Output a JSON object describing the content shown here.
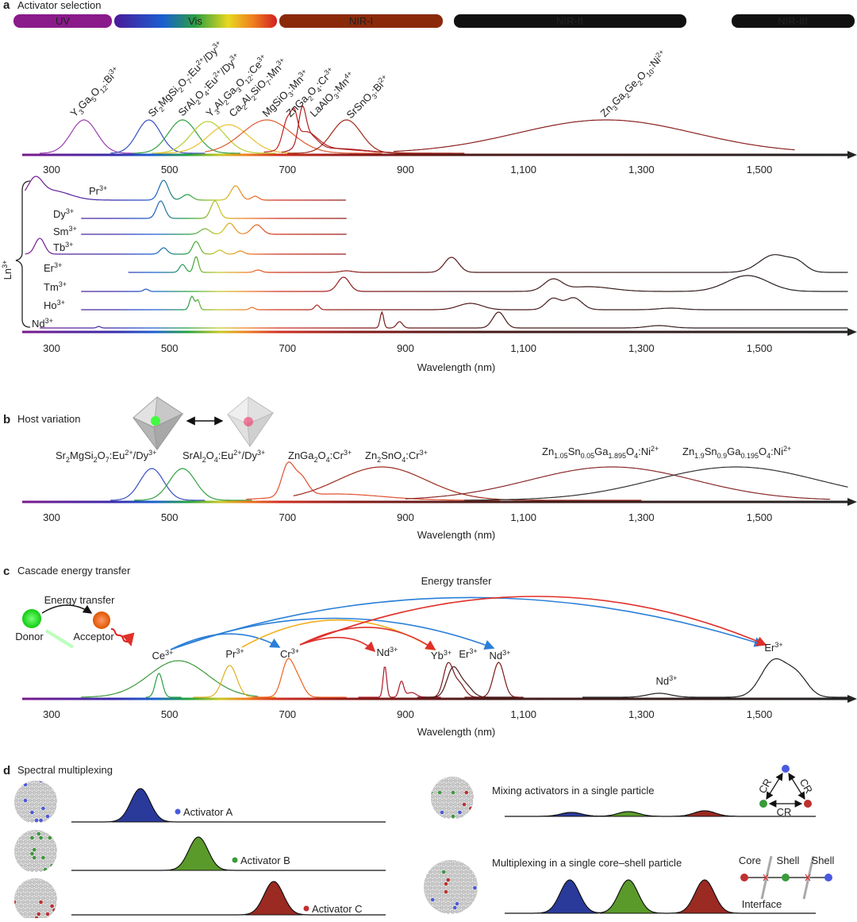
{
  "panel_a": {
    "letter": "a",
    "title": "Activator selection",
    "bands": [
      "UV",
      "Vis",
      "NIR-I",
      "NIR-II",
      "NIR-III"
    ],
    "phosphors": [
      "Y3Ga5O12:Bi3+",
      "Sr2MgSi2O7:Eu2+/Dy3+",
      "SrAl2O4:Eu2+/Dy3+",
      "Y3Al2Ga3O12:Ce3+",
      "Ca2Al2SiO7:Mn3+",
      "MgSiO3:Mn3+",
      "ZnGa2O4:Cr3+",
      "LaAlO3:Mn4+",
      "SrSnO3:Bi2+",
      "Zn3Ga2Ge2O10:Ni2+"
    ],
    "group_label": "Ln3+",
    "ions": [
      "Pr3+",
      "Dy3+",
      "Sm3+",
      "Tb3+",
      "Er3+",
      "Tm3+",
      "Ho3+",
      "Nd3+"
    ]
  },
  "axis": {
    "ticks": [
      300,
      500,
      700,
      900,
      {
        "value": 1100,
        "label": "1,100"
      },
      {
        "value": 1300,
        "label": "1,300"
      },
      {
        "value": 1500,
        "label": "1,500"
      }
    ],
    "label": "Wavelength (nm)"
  },
  "panel_b": {
    "letter": "b",
    "title": "Host variation",
    "phosphors": [
      "Sr2MgSi2O7:Eu2+/Dy3+",
      "SrAl2O4:Eu2+/Dy3+",
      "ZnGa2O4:Cr3+",
      "Zn2SnO4:Cr3+",
      "Zn1.05Sn0.05Ga1.895O4:Ni2+",
      "Zn1.9Sn0.9Ga0.195O4:Ni2+"
    ]
  },
  "panel_c": {
    "letter": "c",
    "title": "Cascade energy transfer",
    "transfer_label": "Energy transfer",
    "ions": [
      "Ce3+",
      "Pr3+",
      "Cr3+",
      "Nd3+",
      "Yb3+",
      "Er3+",
      "Nd3+",
      "Nd3+",
      "Er3+"
    ],
    "inset": {
      "label": "Energy transfer",
      "donor": "Donor",
      "acceptor": "Acceptor"
    }
  },
  "panel_d": {
    "letter": "d",
    "title": "Spectral multiplexing",
    "activators": [
      "Activator A",
      "Activator B",
      "Activator C"
    ],
    "mixing": {
      "label": "Mixing activators in a single particle",
      "cr": [
        "CR",
        "CR",
        "CR"
      ]
    },
    "core_shell": {
      "label": "Multiplexing in a single core–shell particle",
      "layers": [
        "Core",
        "Shell",
        "Shell"
      ],
      "interface": "Interface"
    }
  }
}
